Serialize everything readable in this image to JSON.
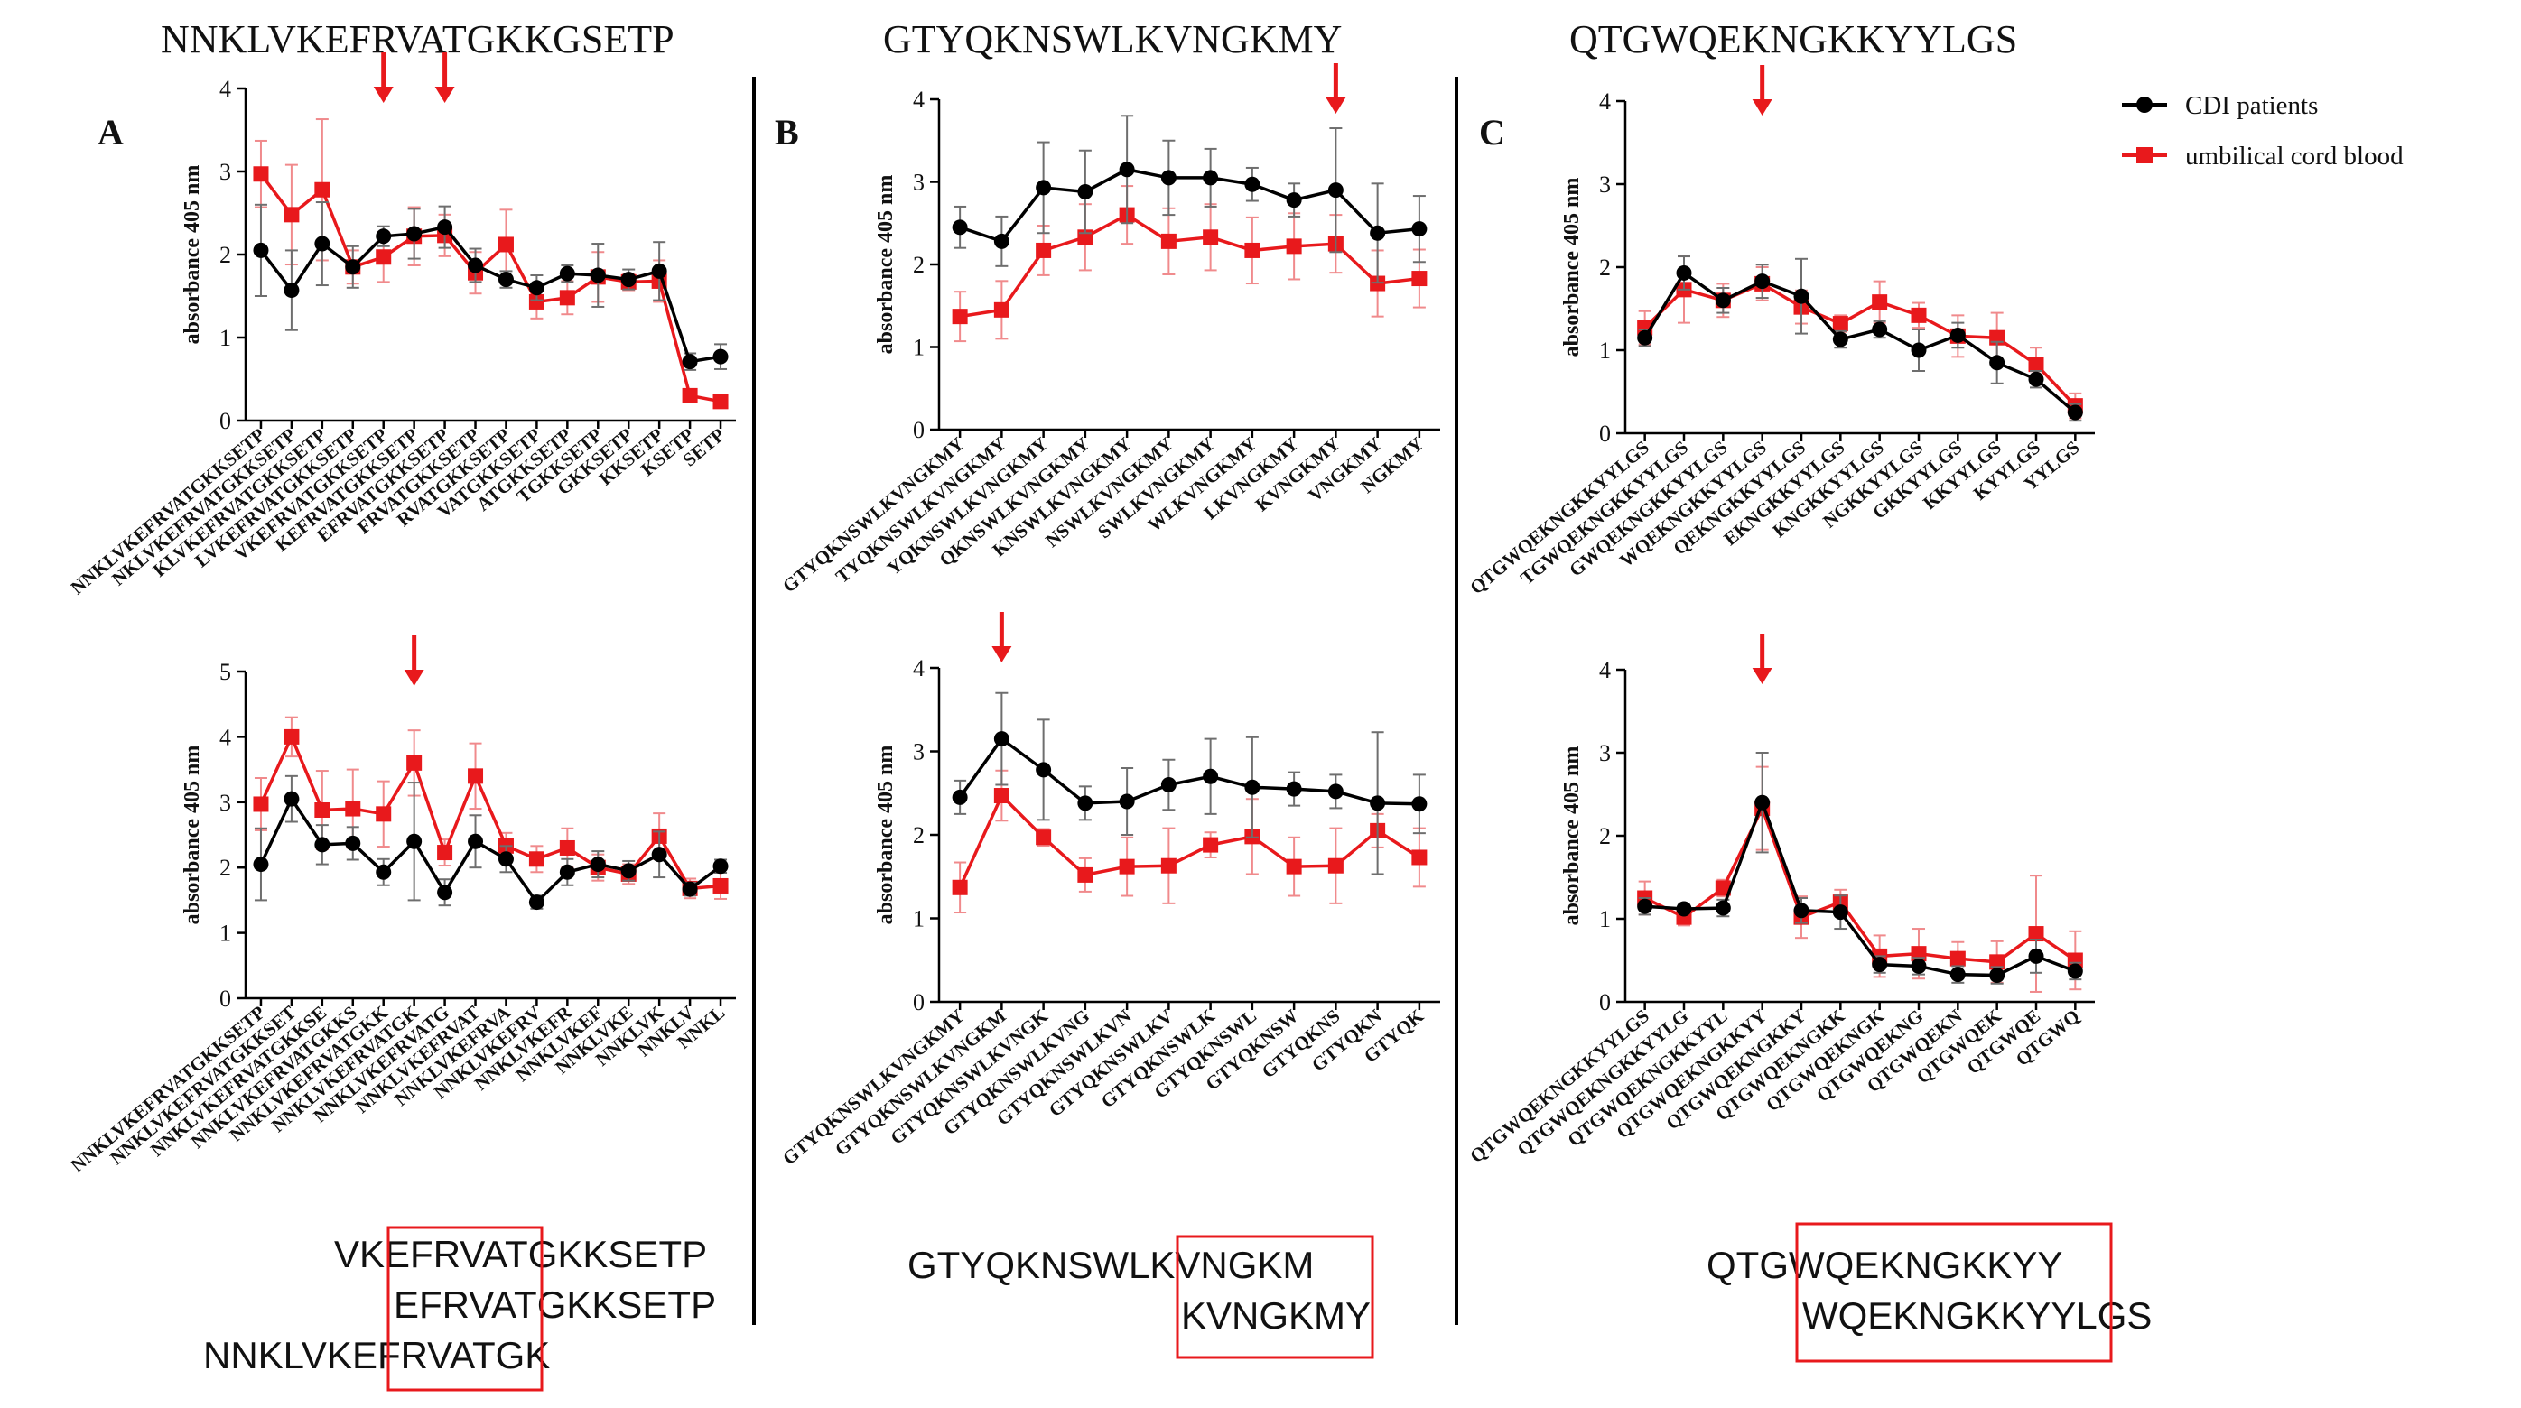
{
  "colors": {
    "black_series": "#000000",
    "red_series": "#e8191c",
    "arrow": "#e8191c",
    "box": "#e8191c"
  },
  "legend": {
    "entries": [
      "CDI patients",
      "umbilical cord blood"
    ]
  },
  "panels": [
    {
      "letter": "A",
      "title": "NNKLVKEFRVATGKKGSETP",
      "alignment": {
        "lines": [
          "VKEFRVATGKKSETP",
          "EFRVATGKKSETP",
          "NNKLVKEFRVATGK"
        ],
        "box_text": "EFRVAT"
      }
    },
    {
      "letter": "B",
      "title": "GTYQKNSWLKVNGKMY",
      "alignment": {
        "lines": [
          "GTYQKNSWLKVNGKM",
          "KVNGKMY"
        ],
        "box_text": "KVNGKM"
      }
    },
    {
      "letter": "C",
      "title": "QTGWQEKNGKKYYLGS",
      "alignment": {
        "lines": [
          "QTGWQEKNGKKYY",
          "WQEKNGKKYYLGS"
        ],
        "box_text": "WQEKNGKKYY"
      }
    }
  ],
  "chart_data": [
    {
      "id": "A-top",
      "type": "line",
      "ylabel": "absorbance 405 nm",
      "ylim": [
        0,
        4
      ],
      "yticks": [
        0,
        1,
        2,
        3,
        4
      ],
      "categories": [
        "NNKLVKEFRVATGKKSETP",
        "NKLVKEFRVATGKKSETP",
        "KLVKEFRVATGKKSETP",
        "LVKEFRVATGKKSETP",
        "VKEFRVATGKKSETP",
        "KEFRVATGKKSETP",
        "EFRVATGKKSETP",
        "FRVATGKKSETP",
        "RVATGKKSETP",
        "VATGKKSETP",
        "ATGKKSETP",
        "TGKKSETP",
        "GKKSETP",
        "KKSETP",
        "KSETP",
        "SETP"
      ],
      "series": [
        {
          "name": "CDI patients",
          "values": [
            2.05,
            1.57,
            2.13,
            1.85,
            2.22,
            2.25,
            2.33,
            1.87,
            1.7,
            1.6,
            1.77,
            1.75,
            1.7,
            1.8,
            0.71,
            0.77
          ],
          "err": [
            0.55,
            0.48,
            0.5,
            0.25,
            0.12,
            0.3,
            0.25,
            0.2,
            0.1,
            0.15,
            0.1,
            0.38,
            0.12,
            0.35,
            0.1,
            0.15
          ]
        },
        {
          "name": "umbilical cord blood",
          "values": [
            2.97,
            2.48,
            2.78,
            1.85,
            1.97,
            2.22,
            2.23,
            1.78,
            2.12,
            1.43,
            1.48,
            1.73,
            1.67,
            1.68,
            0.3,
            0.23
          ],
          "err": [
            0.4,
            0.6,
            0.85,
            0.2,
            0.3,
            0.35,
            0.25,
            0.25,
            0.42,
            0.2,
            0.2,
            0.3,
            0.1,
            0.25,
            0.05,
            0.05
          ]
        }
      ],
      "arrows_at": [
        4,
        6
      ]
    },
    {
      "id": "A-bottom",
      "type": "line",
      "ylabel": "absorbance 405 nm",
      "ylim": [
        0,
        5
      ],
      "yticks": [
        0,
        1,
        2,
        3,
        4,
        5
      ],
      "categories": [
        "NNKLVKEFRVATGKKSETP",
        "NNKLVKEFRVATGKKSET",
        "NNKLVKEFRVATGKKSE",
        "NNKLVKEFRVATGKKS",
        "NNKLVKEFRVATGKK",
        "NNKLVKEFRVATGK",
        "NNKLVKEFRVATG",
        "NNKLVKEFRVAT",
        "NNKLVKEFRVA",
        "NNKLVKEFRV",
        "NNKLVKEFR",
        "NNKLVKEF",
        "NNKLVKE",
        "NNKLVK",
        "NNKLV",
        "NNKL"
      ],
      "series": [
        {
          "name": "CDI patients",
          "values": [
            2.05,
            3.05,
            2.35,
            2.37,
            1.93,
            2.4,
            1.62,
            2.4,
            2.13,
            1.47,
            1.93,
            2.05,
            1.95,
            2.2,
            1.67,
            2.02
          ],
          "err": [
            0.55,
            0.35,
            0.3,
            0.25,
            0.2,
            0.9,
            0.2,
            0.4,
            0.2,
            0.1,
            0.2,
            0.2,
            0.15,
            0.35,
            0.1,
            0.1
          ]
        },
        {
          "name": "umbilical cord blood",
          "values": [
            2.97,
            4.0,
            2.88,
            2.9,
            2.82,
            3.6,
            2.23,
            3.4,
            2.33,
            2.13,
            2.3,
            2.0,
            1.9,
            2.48,
            1.68,
            1.72
          ],
          "err": [
            0.4,
            0.3,
            0.6,
            0.6,
            0.5,
            0.5,
            0.2,
            0.5,
            0.2,
            0.2,
            0.3,
            0.2,
            0.15,
            0.35,
            0.15,
            0.2
          ]
        }
      ],
      "arrows_at": [
        5
      ]
    },
    {
      "id": "B-top",
      "type": "line",
      "ylabel": "absorbance 405 nm",
      "ylim": [
        0,
        4
      ],
      "yticks": [
        0,
        1,
        2,
        3,
        4
      ],
      "categories": [
        "GTYQKNSWLKVNGKMY",
        "TYQKNSWLKVNGKMY",
        "YQKNSWLKVNGKMY",
        "QKNSWLKVNGKMY",
        "KNSWLKVNGKMY",
        "NSWLKVNGKMY",
        "SWLKVNGKMY",
        "WLKVNGKMY",
        "LKVNGKMY",
        "KVNGKMY",
        "VNGKMY",
        "NGKMY"
      ],
      "series": [
        {
          "name": "CDI patients",
          "values": [
            2.45,
            2.28,
            2.93,
            2.88,
            3.15,
            3.05,
            3.05,
            2.97,
            2.78,
            2.9,
            2.38,
            2.43
          ],
          "err": [
            0.25,
            0.3,
            0.55,
            0.5,
            0.65,
            0.45,
            0.35,
            0.2,
            0.2,
            0.75,
            0.6,
            0.4
          ]
        },
        {
          "name": "umbilical cord blood",
          "values": [
            1.37,
            1.45,
            2.17,
            2.33,
            2.6,
            2.28,
            2.33,
            2.17,
            2.22,
            2.25,
            1.77,
            1.83
          ],
          "err": [
            0.3,
            0.35,
            0.3,
            0.4,
            0.35,
            0.4,
            0.4,
            0.4,
            0.4,
            0.35,
            0.4,
            0.35
          ]
        }
      ],
      "arrows_at": [
        9
      ]
    },
    {
      "id": "B-bottom",
      "type": "line",
      "ylabel": "absorbance 405 nm",
      "ylim": [
        0,
        4
      ],
      "yticks": [
        0,
        1,
        2,
        3,
        4
      ],
      "categories": [
        "GTYQKNSWLKVNGKMY",
        "GTYQKNSWLKVNGKM",
        "GTYQKNSWLKVNGK",
        "GTYQKNSWLKVNG",
        "GTYQKNSWLKVN",
        "GTYQKNSWLKV",
        "GTYQKNSWLK",
        "GTYQKNSWL",
        "GTYQKNSW",
        "GTYQKNS",
        "GTYQKN",
        "GTYQK"
      ],
      "series": [
        {
          "name": "CDI patients",
          "values": [
            2.45,
            3.15,
            2.78,
            2.38,
            2.4,
            2.6,
            2.7,
            2.57,
            2.55,
            2.52,
            2.38,
            2.37
          ],
          "err": [
            0.2,
            0.55,
            0.6,
            0.2,
            0.4,
            0.3,
            0.45,
            0.6,
            0.2,
            0.2,
            0.85,
            0.35
          ]
        },
        {
          "name": "umbilical cord blood",
          "values": [
            1.37,
            2.47,
            1.97,
            1.52,
            1.62,
            1.63,
            1.88,
            1.98,
            1.62,
            1.63,
            2.05,
            1.73
          ],
          "err": [
            0.3,
            0.3,
            0.1,
            0.2,
            0.35,
            0.45,
            0.15,
            0.45,
            0.35,
            0.45,
            0.2,
            0.35
          ]
        }
      ],
      "arrows_at": [
        1
      ]
    },
    {
      "id": "C-top",
      "type": "line",
      "ylabel": "absorbance 405 nm",
      "ylim": [
        0,
        4
      ],
      "yticks": [
        0,
        1,
        2,
        3,
        4
      ],
      "categories": [
        "QTGWQEKNGKKYYLGS",
        "TGWQEKNGKKYYLGS",
        "GWQEKNGKKYYLGS",
        "WQEKNGKKYYLGS",
        "QEKNGKKYYLGS",
        "EKNGKKYYLGS",
        "KNGKKYYLGS",
        "NGKKYYLGS",
        "GKKYYLGS",
        "KKYYLGS",
        "KYYLGS",
        "YYLGS"
      ],
      "series": [
        {
          "name": "CDI patients",
          "values": [
            1.15,
            1.93,
            1.6,
            1.83,
            1.65,
            1.13,
            1.25,
            1.0,
            1.18,
            0.85,
            0.65,
            0.25
          ],
          "err": [
            0.1,
            0.2,
            0.15,
            0.2,
            0.45,
            0.1,
            0.1,
            0.25,
            0.15,
            0.25,
            0.1,
            0.1
          ]
        },
        {
          "name": "umbilical cord blood",
          "values": [
            1.27,
            1.73,
            1.6,
            1.8,
            1.52,
            1.32,
            1.58,
            1.42,
            1.17,
            1.15,
            0.83,
            0.33
          ],
          "err": [
            0.2,
            0.4,
            0.2,
            0.2,
            0.2,
            0.1,
            0.25,
            0.15,
            0.25,
            0.3,
            0.2,
            0.15
          ]
        }
      ],
      "arrows_at": [
        3
      ]
    },
    {
      "id": "C-bottom",
      "type": "line",
      "ylabel": "absorbance 405 nm",
      "ylim": [
        0,
        4
      ],
      "yticks": [
        0,
        1,
        2,
        3,
        4
      ],
      "categories": [
        "QTGWQEKNGKKYYLGS",
        "QTGWQEKNGKKYYLG",
        "QTGWQEKNGKKYYL",
        "QTGWQEKNGKKYY",
        "QTGWQEKNGKKY",
        "QTGWQEKNGKK",
        "QTGWQEKNGK",
        "QTGWQEKNG",
        "QTGWQEKN",
        "QTGWQEK",
        "QTGWQE",
        "QTGWQ"
      ],
      "series": [
        {
          "name": "CDI patients",
          "values": [
            1.15,
            1.12,
            1.13,
            2.4,
            1.1,
            1.08,
            0.45,
            0.43,
            0.33,
            0.32,
            0.55,
            0.37
          ],
          "err": [
            0.1,
            0.05,
            0.1,
            0.6,
            0.15,
            0.2,
            0.1,
            0.1,
            0.1,
            0.1,
            0.2,
            0.1
          ]
        },
        {
          "name": "umbilical cord blood",
          "values": [
            1.25,
            1.02,
            1.37,
            2.33,
            1.02,
            1.2,
            0.55,
            0.58,
            0.52,
            0.48,
            0.82,
            0.5
          ],
          "err": [
            0.2,
            0.1,
            0.1,
            0.5,
            0.25,
            0.15,
            0.25,
            0.3,
            0.2,
            0.25,
            0.7,
            0.35
          ]
        }
      ],
      "arrows_at": [
        3
      ]
    }
  ]
}
